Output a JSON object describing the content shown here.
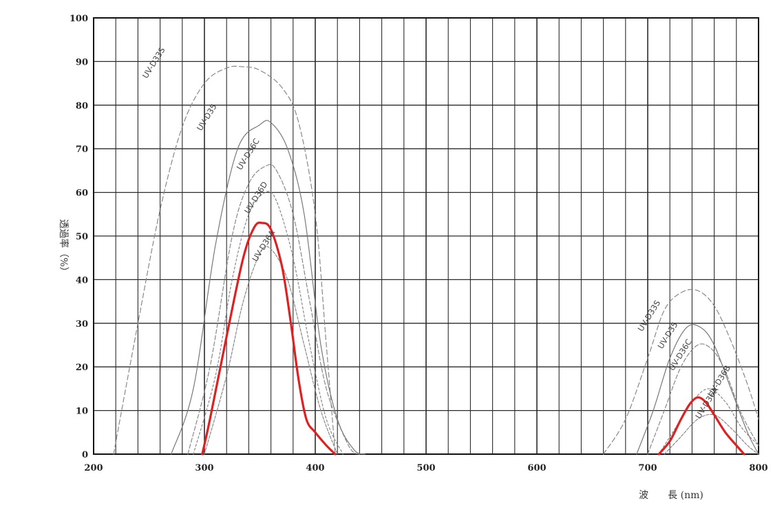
{
  "chart_data": {
    "type": "line",
    "xlabel": "波　　長 (nm)",
    "ylabel": "透過率（%）",
    "xlim": [
      200,
      800
    ],
    "ylim": [
      0,
      100
    ],
    "x_ticks": [
      200,
      300,
      400,
      500,
      600,
      700,
      800
    ],
    "y_ticks": [
      0,
      10,
      20,
      30,
      40,
      50,
      60,
      70,
      80,
      90,
      100
    ],
    "grid": true,
    "series": [
      {
        "name": "UV-D33S",
        "color": "#888888",
        "dash": "7,4",
        "label_pos": [
          248,
          86
        ],
        "x": [
          218,
          240,
          260,
          280,
          300,
          320,
          335,
          350,
          370,
          385,
          400,
          410,
          418
        ],
        "y": [
          0,
          30,
          56,
          75,
          85,
          88.5,
          88.8,
          88,
          84,
          76,
          55,
          25,
          0
        ]
      },
      {
        "name": "UV-D35",
        "color": "#777777",
        "dash": "",
        "label_pos": [
          297,
          74
        ],
        "x": [
          270,
          290,
          310,
          330,
          350,
          360,
          375,
          390,
          405,
          420,
          435,
          445
        ],
        "y": [
          0,
          15,
          48,
          70,
          75.5,
          76,
          70,
          55,
          25,
          8,
          1,
          0
        ]
      },
      {
        "name": "UV-D36C",
        "color": "#888888",
        "dash": "6,3",
        "label_pos": [
          333,
          65
        ],
        "x": [
          285,
          305,
          325,
          340,
          355,
          365,
          380,
          395,
          410,
          430,
          440
        ],
        "y": [
          0,
          20,
          50,
          62,
          66,
          65,
          55,
          35,
          15,
          2,
          0
        ]
      },
      {
        "name": "UV-D36D",
        "color": "#888888",
        "dash": "3,3",
        "label_pos": [
          340,
          55
        ],
        "x": [
          290,
          310,
          325,
          340,
          355,
          365,
          380,
          395,
          410,
          425
        ],
        "y": [
          0,
          18,
          40,
          55,
          60,
          58,
          45,
          25,
          8,
          0
        ]
      },
      {
        "name": "UV-D36A",
        "color": "#888888",
        "dash": "4,2",
        "label_pos": [
          347,
          44
        ],
        "x": [
          300,
          320,
          335,
          350,
          360,
          375,
          390,
          405,
          420
        ],
        "y": [
          0,
          18,
          35,
          46,
          47,
          40,
          25,
          10,
          0
        ]
      },
      {
        "name": "",
        "color": "#e02020",
        "dash": "",
        "width": 3.2,
        "label_pos": null,
        "x": [
          298,
          305,
          320,
          335,
          345,
          352,
          360,
          370,
          378,
          385,
          392,
          400,
          410,
          418
        ],
        "y": [
          0,
          8,
          27,
          45,
          52,
          53,
          51.5,
          43,
          30,
          17,
          8,
          5,
          2,
          0
        ]
      },
      {
        "name": "UV-D33S",
        "color": "#888888",
        "dash": "7,4",
        "label_pos": [
          695,
          28
        ],
        "x": [
          660,
          680,
          700,
          715,
          730,
          745,
          760,
          775,
          790,
          800
        ],
        "y": [
          0,
          8,
          22,
          33,
          37,
          37.5,
          34,
          26,
          16,
          8
        ]
      },
      {
        "name": "UV-D35",
        "color": "#777777",
        "dash": "",
        "label_pos": [
          713,
          24
        ],
        "x": [
          690,
          705,
          720,
          735,
          748,
          760,
          775,
          790,
          800
        ],
        "y": [
          0,
          10,
          22,
          29,
          29,
          25,
          15,
          5,
          0
        ]
      },
      {
        "name": "UV-D36C",
        "color": "#888888",
        "dash": "6,3",
        "label_pos": [
          723,
          19
        ],
        "x": [
          700,
          715,
          730,
          745,
          758,
          770,
          785,
          800
        ],
        "y": [
          0,
          10,
          20,
          25,
          24,
          19,
          9,
          2
        ]
      },
      {
        "name": "UV-D36B",
        "color": "#888888",
        "dash": "3,3",
        "label_pos": [
          758,
          13
        ],
        "x": [
          710,
          725,
          740,
          755,
          770,
          785,
          800
        ],
        "y": [
          0,
          6,
          12,
          15,
          12,
          6,
          2
        ]
      },
      {
        "name": "UV-D36A",
        "color": "#888888",
        "dash": "4,2",
        "label_pos": [
          747,
          8
        ],
        "x": [
          715,
          730,
          745,
          760,
          775,
          790,
          800
        ],
        "y": [
          0,
          4,
          8,
          9,
          6,
          2,
          0
        ]
      },
      {
        "name": "",
        "color": "#e02020",
        "dash": "",
        "width": 3.2,
        "label_pos": null,
        "x": [
          710,
          720,
          730,
          738,
          745,
          752,
          760,
          770,
          780,
          787
        ],
        "y": [
          0,
          3,
          8,
          11.5,
          13,
          12,
          9,
          5,
          2,
          0
        ]
      }
    ]
  }
}
